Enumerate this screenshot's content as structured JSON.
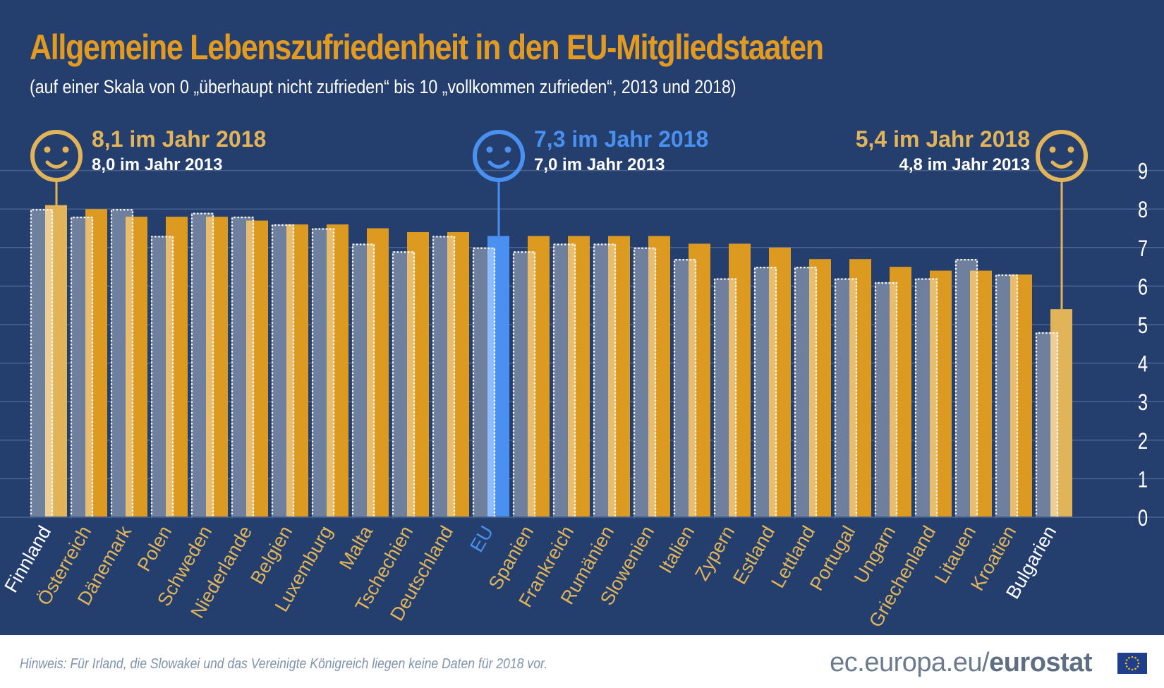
{
  "title": "Allgemeine Lebenszufriedenheit in den EU-Mitgliedstaaten",
  "subtitle": "(auf einer Skala von 0 „überhaupt nicht zufrieden“ bis 10 „vollkommen zufrieden“, 2013 und 2018)",
  "callouts": [
    {
      "key": "Finnland",
      "line1": "8,1 im Jahr 2018",
      "line2": "8,0 im Jahr 2013",
      "color": "#e2b45a",
      "align": "left"
    },
    {
      "key": "EU",
      "line1": "7,3 im Jahr 2018",
      "line2": "7,0 im Jahr 2013",
      "color": "#4a90f0",
      "align": "left"
    },
    {
      "key": "Bulgarien",
      "line1": "5,4 im Jahr 2018",
      "line2": "4,8 im Jahr 2013",
      "color": "#e2b45a",
      "align": "right"
    }
  ],
  "footer": {
    "note": "Hinweis: Für Irland, die Slowakei und das Vereinigte Königreich liegen keine Daten für 2018 vor.",
    "brand_prefix": "ec.europa.eu/",
    "brand_bold": "eurostat",
    "logo_icon": "eu-flag-icon"
  },
  "colors": {
    "background": "#243f6e",
    "bar_2013": "#6f809f",
    "bar_2018": "#dd9a21",
    "bar_2018_overlap": "#e8bd6e",
    "highlight_2018": "#e2b45a",
    "highlight_overlap": "#edcf95",
    "eu_2018": "#4a90f0",
    "eu_overlap": "#8fbcff",
    "label": "#e2b45a",
    "label_highlight": "#ffffff",
    "label_eu": "#4a90f0",
    "gridline": "#4b6390"
  },
  "chart_data": {
    "type": "bar",
    "title": "Allgemeine Lebenszufriedenheit in den EU-Mitgliedstaaten",
    "subtitle": "(auf einer Skala von 0 „überhaupt nicht zufrieden“ bis 10 „vollkommen zufrieden“, 2013 und 2018)",
    "xlabel": "",
    "ylabel": "",
    "ylim": [
      0,
      9
    ],
    "yticks": [
      0,
      1,
      2,
      3,
      4,
      5,
      6,
      7,
      8,
      9
    ],
    "y_axis_position": "right",
    "grid": true,
    "legend": "none",
    "categories": [
      "Finnland",
      "Österreich",
      "Dänemark",
      "Polen",
      "Schweden",
      "Niederlande",
      "Belgien",
      "Luxemburg",
      "Malta",
      "Tschechien",
      "Deutschland",
      "EU",
      "Spanien",
      "Frankreich",
      "Rumänien",
      "Slowenien",
      "Italien",
      "Zypern",
      "Estland",
      "Lettland",
      "Portugal",
      "Ungarn",
      "Griechenland",
      "Litauen",
      "Kroatien",
      "Bulgarien"
    ],
    "series": [
      {
        "name": "2013",
        "values": [
          8.0,
          7.8,
          8.0,
          7.3,
          7.9,
          7.8,
          7.6,
          7.5,
          7.1,
          6.9,
          7.3,
          7.0,
          6.9,
          7.1,
          7.1,
          7.0,
          6.7,
          6.2,
          6.5,
          6.5,
          6.2,
          6.1,
          6.2,
          6.7,
          6.3,
          4.8
        ]
      },
      {
        "name": "2018",
        "values": [
          8.1,
          8.0,
          7.8,
          7.8,
          7.8,
          7.7,
          7.6,
          7.6,
          7.5,
          7.4,
          7.4,
          7.3,
          7.3,
          7.3,
          7.3,
          7.3,
          7.1,
          7.1,
          7.0,
          6.7,
          6.7,
          6.5,
          6.4,
          6.4,
          6.3,
          5.4
        ]
      }
    ],
    "highlighted": [
      "Finnland",
      "EU",
      "Bulgarien"
    ]
  }
}
